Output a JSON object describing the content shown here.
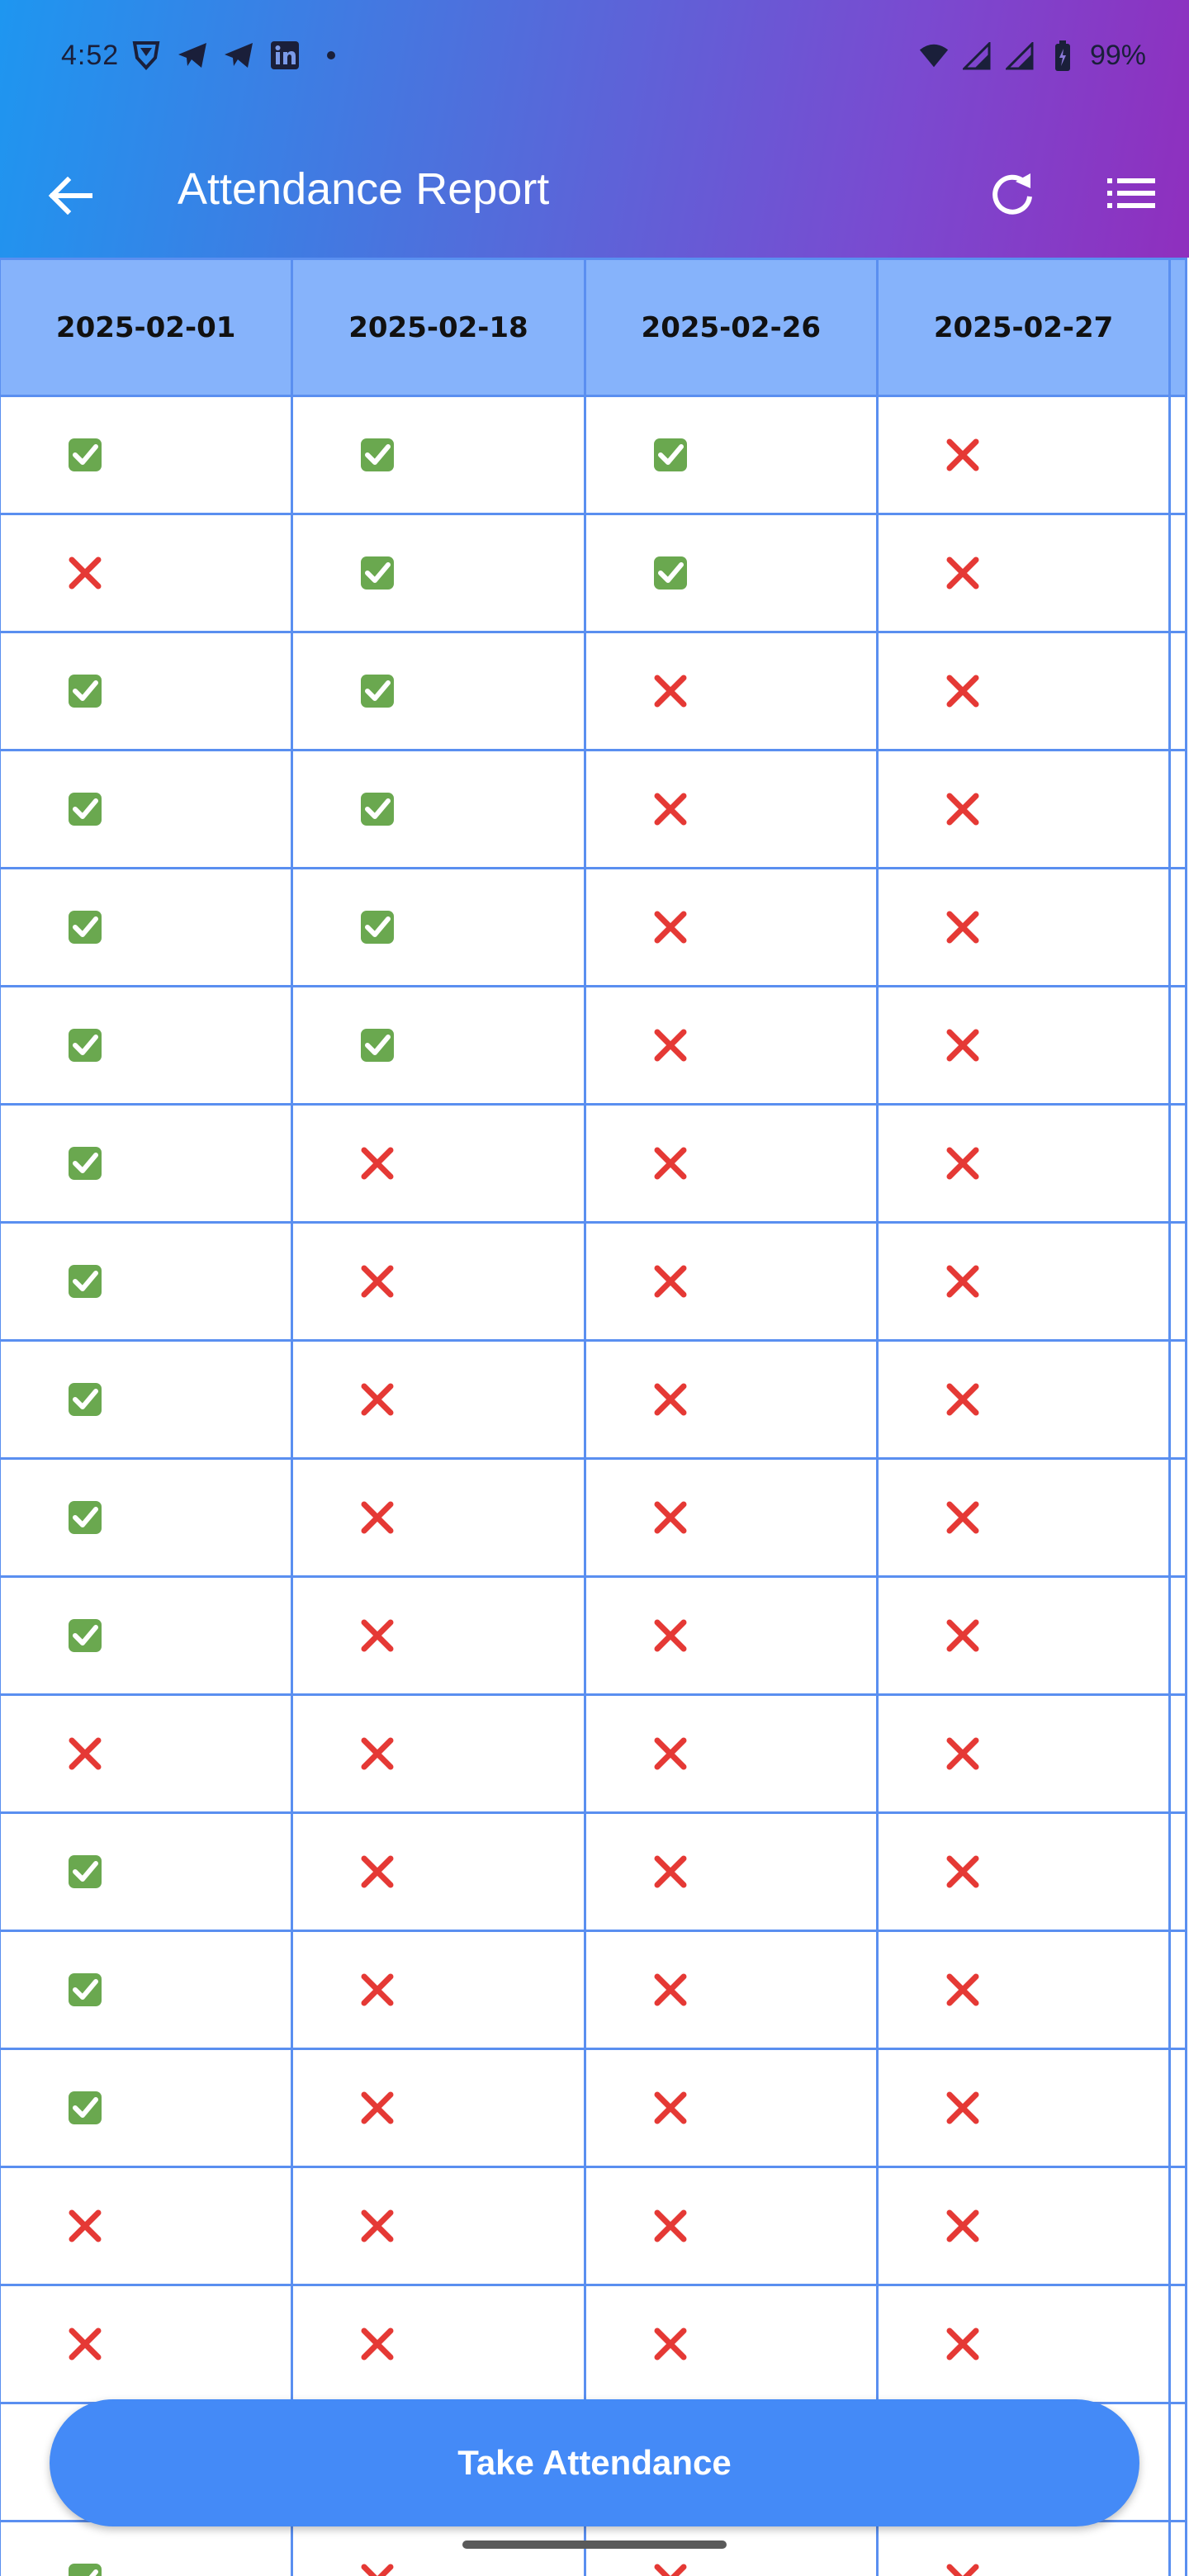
{
  "status_bar": {
    "time": "4:52",
    "battery": "99%",
    "left_icons": [
      "vpn-shield-icon",
      "telegram-icon",
      "telegram-icon",
      "linkedin-icon",
      "dot-icon"
    ],
    "right_icons": [
      "wifi-icon",
      "signal-icon",
      "signal-icon",
      "battery-icon"
    ]
  },
  "toolbar": {
    "title": "Attendance Report",
    "back_icon": "arrow-left-icon",
    "refresh_icon": "refresh-icon",
    "menu_icon": "list-icon"
  },
  "table": {
    "columns": [
      "2025-02-01",
      "2025-02-18",
      "2025-02-26",
      "2025-02-27"
    ],
    "rows": [
      [
        true,
        true,
        true,
        false
      ],
      [
        false,
        true,
        true,
        false
      ],
      [
        true,
        true,
        false,
        false
      ],
      [
        true,
        true,
        false,
        false
      ],
      [
        true,
        true,
        false,
        false
      ],
      [
        true,
        true,
        false,
        false
      ],
      [
        true,
        false,
        false,
        false
      ],
      [
        true,
        false,
        false,
        false
      ],
      [
        true,
        false,
        false,
        false
      ],
      [
        true,
        false,
        false,
        false
      ],
      [
        true,
        false,
        false,
        false
      ],
      [
        false,
        false,
        false,
        false
      ],
      [
        true,
        false,
        false,
        false
      ],
      [
        true,
        false,
        false,
        false
      ],
      [
        true,
        false,
        false,
        false
      ],
      [
        false,
        false,
        false,
        false
      ],
      [
        false,
        false,
        false,
        false
      ],
      [
        true,
        false,
        false,
        false
      ],
      [
        true,
        false,
        false,
        false
      ]
    ],
    "present_color": "#6aa84f",
    "absent_color": "#e53935"
  },
  "actions": {
    "take_attendance": "Take Attendance"
  }
}
